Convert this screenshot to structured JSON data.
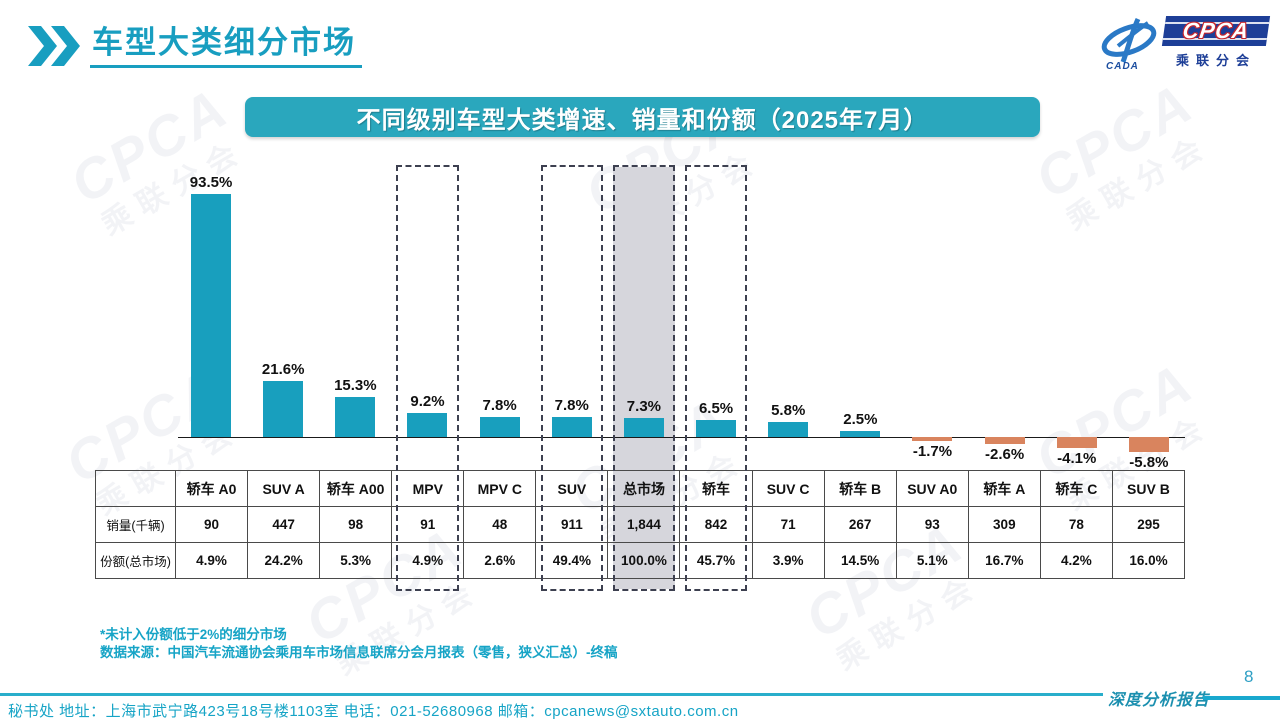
{
  "header": {
    "title": "车型大类细分市场"
  },
  "logo": {
    "acronym": "CPCA",
    "chinese_name": "乘联分会",
    "cada": "CADA"
  },
  "banner": {
    "title": "不同级别车型大类增速、销量和份额（2025年7月）"
  },
  "chart_data": {
    "type": "bar",
    "title": "不同级别车型大类增速、销量和份额（2025年7月）",
    "categories": [
      "轿车 A0",
      "SUV A",
      "轿车 A00",
      "MPV",
      "MPV C",
      "SUV",
      "总市场",
      "轿车",
      "SUV C",
      "轿车 B",
      "SUV A0",
      "轿车 A",
      "轿车 C",
      "SUV B"
    ],
    "series": [
      {
        "name": "增速",
        "unit": "%",
        "values": [
          93.5,
          21.6,
          15.3,
          9.2,
          7.8,
          7.8,
          7.3,
          6.5,
          5.8,
          2.5,
          -1.7,
          -2.6,
          -4.1,
          -5.8
        ]
      },
      {
        "name": "销量(千辆)",
        "values": [
          "90",
          "447",
          "98",
          "91",
          "48",
          "911",
          "1,844",
          "842",
          "71",
          "267",
          "93",
          "309",
          "78",
          "295"
        ]
      },
      {
        "name": "份额(总市场)",
        "values": [
          "4.9%",
          "24.2%",
          "5.3%",
          "4.9%",
          "2.6%",
          "49.4%",
          "100.0%",
          "45.7%",
          "3.9%",
          "14.5%",
          "5.1%",
          "16.7%",
          "4.2%",
          "16.0%"
        ]
      }
    ],
    "highlight_boxes": [
      {
        "category": "MPV",
        "filled": false
      },
      {
        "category": "SUV",
        "filled": false
      },
      {
        "category": "总市场",
        "filled": true
      },
      {
        "category": "轿车",
        "filled": false
      }
    ],
    "positive_color": "#189FBE",
    "negative_color": "#D9845E",
    "ylim": [
      -10,
      100
    ],
    "grid": false,
    "legend": false
  },
  "notes": {
    "line1": "*未计入份额低于2%的细分市场",
    "line2": "数据来源：中国汽车流通协会乘用车市场信息联席分会月报表（零售，狭义汇总）-终稿"
  },
  "footer": {
    "contact": "秘书处  地址：上海市武宁路423号18号楼1103室  电话：021-52680968   邮箱：cpcanews@sxtauto.com.cn",
    "report_label": "深度分析报告",
    "page_number": "8"
  },
  "watermark": {
    "text_main": "CPCA",
    "text_sub": "乘联分会"
  }
}
